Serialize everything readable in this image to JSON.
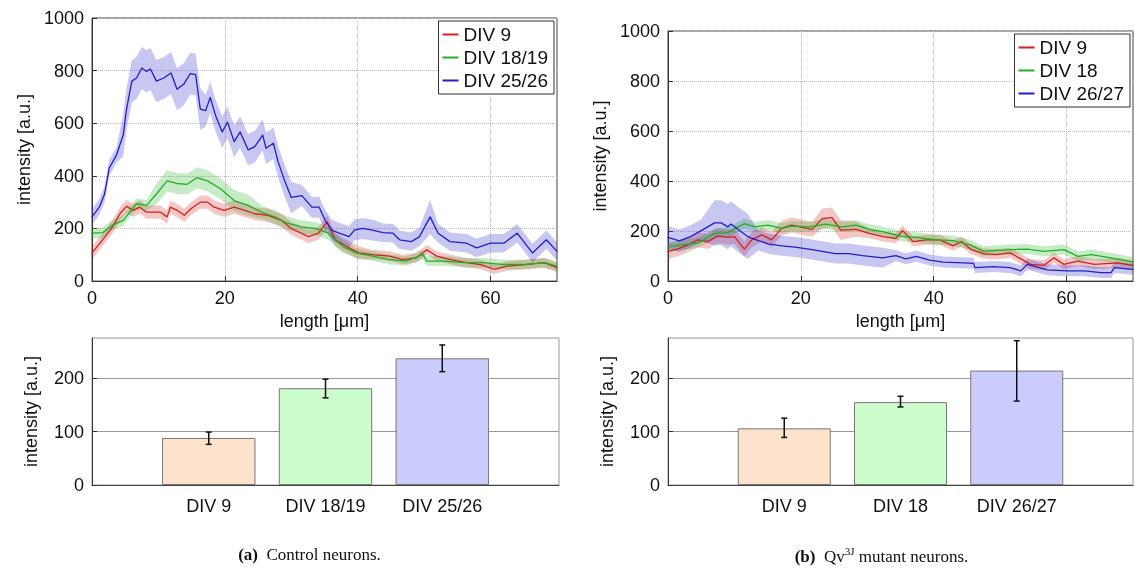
{
  "chart_data": [
    {
      "type": "line",
      "xlabel": "length [μm]",
      "ylabel": "intensity [a.u.]",
      "xlim": [
        0,
        70
      ],
      "xticks": [
        0,
        20,
        40,
        60
      ],
      "ylim": [
        0,
        1000
      ],
      "yticks": [
        0,
        200,
        400,
        600,
        800,
        1000
      ],
      "grid": true,
      "legend": "top right",
      "series": [
        {
          "name": "DIV 9",
          "color": "#d42020",
          "x": [
            0,
            1.6,
            3.1,
            4.2,
            5.2,
            6.2,
            7.2,
            8.2,
            10.3,
            11.3,
            11.8,
            12.8,
            13.9,
            14.9,
            16.3,
            17.4,
            18.4,
            19.9,
            21.4,
            23,
            24.5,
            26.5,
            28.5,
            30,
            32.6,
            34.1,
            35.4,
            36.6,
            38.7,
            40.2,
            42.2,
            44.8,
            46.8,
            48.8,
            50.4,
            51.9,
            54,
            56.4,
            58.5,
            60.5,
            62.5,
            65.1,
            68.1,
            70
          ],
          "values": [
            107,
            157,
            206,
            256,
            284,
            269,
            281,
            262,
            262,
            244,
            281,
            269,
            250,
            275,
            300,
            300,
            281,
            269,
            281,
            269,
            256,
            250,
            231,
            200,
            169,
            182,
            225,
            157,
            126,
            107,
            101,
            95,
            82,
            88,
            119,
            95,
            82,
            70,
            63,
            45,
            57,
            63,
            70,
            51
          ],
          "lower": [
            82,
            132,
            181,
            231,
            259,
            244,
            256,
            237,
            237,
            219,
            256,
            244,
            225,
            250,
            275,
            275,
            256,
            244,
            256,
            244,
            231,
            225,
            206,
            175,
            144,
            157,
            200,
            132,
            101,
            82,
            83,
            77,
            64,
            70,
            101,
            77,
            64,
            52,
            45,
            27,
            39,
            45,
            52,
            33
          ],
          "upper": [
            132,
            182,
            231,
            281,
            309,
            294,
            306,
            287,
            287,
            269,
            306,
            294,
            275,
            300,
            325,
            325,
            306,
            294,
            306,
            294,
            281,
            275,
            256,
            225,
            194,
            207,
            250,
            182,
            151,
            132,
            119,
            113,
            100,
            106,
            137,
            113,
            100,
            88,
            81,
            63,
            75,
            81,
            88,
            69
          ]
        },
        {
          "name": "DIV 18/19",
          "color": "#20b020",
          "x": [
            0,
            1.6,
            3.1,
            4.7,
            6.7,
            8.2,
            9.7,
            11.3,
            12.8,
            14.3,
            15.8,
            17.4,
            19.4,
            21.4,
            23.5,
            25.5,
            27.5,
            29.5,
            31.6,
            33.6,
            35.6,
            37.7,
            39.7,
            42.2,
            44.8,
            47.3,
            49.8,
            50.4,
            52.9,
            56,
            59,
            62,
            65.1,
            68.1,
            70
          ],
          "values": [
            182,
            184,
            213,
            231,
            294,
            288,
            331,
            381,
            371,
            368,
            393,
            381,
            350,
            306,
            288,
            262,
            244,
            219,
            206,
            200,
            182,
            132,
            107,
            95,
            82,
            76,
            101,
            76,
            76,
            70,
            70,
            63,
            63,
            70,
            57
          ],
          "lower": [
            162,
            164,
            193,
            211,
            274,
            268,
            291,
            341,
            331,
            328,
            353,
            341,
            310,
            266,
            248,
            237,
            219,
            194,
            181,
            175,
            157,
            107,
            89,
            77,
            64,
            58,
            83,
            58,
            58,
            52,
            52,
            45,
            45,
            52,
            39
          ],
          "upper": [
            202,
            204,
            233,
            251,
            314,
            308,
            371,
            421,
            411,
            408,
            433,
            421,
            390,
            346,
            328,
            287,
            269,
            244,
            231,
            225,
            207,
            157,
            125,
            113,
            100,
            94,
            119,
            94,
            94,
            88,
            88,
            81,
            81,
            88,
            75
          ]
        },
        {
          "name": "DIV 25/26",
          "color": "#2020c8",
          "x": [
            0,
            1.1,
            1.9,
            2.6,
            3.7,
            4.7,
            5.2,
            6,
            6.7,
            7.5,
            8.2,
            8.8,
            9.7,
            10.8,
            11.9,
            12.8,
            13.8,
            14.8,
            15.6,
            16.3,
            17.1,
            17.8,
            18.6,
            19.6,
            20.4,
            21.4,
            22.3,
            23.5,
            24.5,
            25.7,
            26.2,
            27.3,
            28,
            29,
            30,
            31.6,
            33.1,
            34.2,
            35.1,
            36.1,
            37.2,
            38.7,
            39.5,
            40.7,
            42.2,
            43.8,
            45.3,
            46.3,
            48.1,
            49.3,
            50.9,
            52.1,
            53.9,
            56.4,
            57.9,
            60,
            62,
            64,
            66.3,
            68.4,
            70
          ],
          "values": [
            244,
            281,
            331,
            430,
            480,
            555,
            654,
            760,
            772,
            810,
            797,
            806,
            760,
            772,
            791,
            729,
            748,
            789,
            785,
            654,
            648,
            698,
            629,
            567,
            604,
            530,
            567,
            499,
            511,
            555,
            505,
            524,
            455,
            381,
            318,
            325,
            281,
            281,
            231,
            194,
            182,
            169,
            194,
            200,
            194,
            184,
            182,
            157,
            150,
            169,
            244,
            182,
            150,
            144,
            126,
            144,
            144,
            182,
            107,
            157,
            113
          ],
          "lower": [
            214,
            251,
            301,
            400,
            450,
            475,
            574,
            680,
            692,
            730,
            717,
            726,
            680,
            692,
            711,
            649,
            668,
            709,
            705,
            574,
            588,
            638,
            569,
            507,
            544,
            470,
            507,
            439,
            451,
            495,
            445,
            464,
            395,
            321,
            258,
            285,
            241,
            241,
            191,
            154,
            142,
            129,
            154,
            160,
            154,
            149,
            147,
            122,
            115,
            134,
            179,
            147,
            115,
            109,
            91,
            109,
            109,
            147,
            72,
            122,
            78
          ],
          "upper": [
            274,
            311,
            361,
            460,
            510,
            635,
            734,
            840,
            852,
            890,
            877,
            886,
            840,
            852,
            871,
            809,
            828,
            869,
            865,
            734,
            708,
            758,
            689,
            627,
            664,
            590,
            627,
            559,
            571,
            615,
            565,
            584,
            515,
            441,
            378,
            365,
            321,
            321,
            271,
            234,
            222,
            209,
            234,
            240,
            234,
            219,
            217,
            192,
            185,
            204,
            309,
            217,
            185,
            179,
            161,
            179,
            179,
            217,
            142,
            192,
            148
          ]
        }
      ]
    },
    {
      "type": "bar",
      "ylabel": "intensity [a.u.]",
      "categories": [
        "DIV 9",
        "DIV 18/19",
        "DIV 25/26"
      ],
      "values": [
        88,
        181,
        237
      ],
      "colors": [
        "#fde3cb",
        "#cdfccd",
        "#ccccfc"
      ],
      "errors": [
        [
          76,
          99
        ],
        [
          163,
          198
        ],
        [
          212,
          262
        ]
      ],
      "ylim": [
        0,
        275
      ],
      "yticks": [
        0,
        100,
        200
      ],
      "grid": "y",
      "annotations": [
        "(a) Control neurons."
      ]
    },
    {
      "type": "line",
      "xlabel": "length [μm]",
      "ylabel": "intensity [a.u.]",
      "xlim": [
        0,
        70
      ],
      "xticks": [
        0,
        20,
        40,
        60
      ],
      "ylim": [
        0,
        1000
      ],
      "yticks": [
        0,
        200,
        400,
        600,
        800,
        1000
      ],
      "grid": true,
      "legend": "top right",
      "series": [
        {
          "name": "DIV 9",
          "color": "#d42020",
          "x": [
            0,
            1.4,
            3,
            4.5,
            6,
            7.5,
            9,
            10,
            11.5,
            12.6,
            14.1,
            15.6,
            17.1,
            18.6,
            20.2,
            21.7,
            23.2,
            24.7,
            26,
            28.3,
            30.3,
            32.3,
            34.3,
            35.3,
            36.9,
            38.9,
            40.9,
            42.9,
            44.2,
            45.5,
            47.5,
            49.5,
            51.5,
            54.6,
            56.6,
            58.1,
            59.6,
            61.7,
            64.2,
            67.7,
            70
          ],
          "values": [
            119,
            128,
            145,
            165,
            158,
            181,
            175,
            178,
            128,
            165,
            185,
            165,
            211,
            224,
            215,
            207,
            250,
            254,
            204,
            207,
            191,
            178,
            171,
            202,
            158,
            165,
            165,
            141,
            158,
            128,
            110,
            106,
            113,
            67,
            63,
            93,
            67,
            80,
            67,
            73,
            63
          ],
          "lower": [
            89,
            98,
            115,
            135,
            128,
            151,
            145,
            148,
            98,
            135,
            155,
            135,
            181,
            194,
            185,
            177,
            210,
            214,
            164,
            177,
            171,
            158,
            151,
            182,
            138,
            145,
            145,
            121,
            138,
            108,
            90,
            86,
            93,
            47,
            43,
            73,
            47,
            60,
            47,
            53,
            43
          ],
          "upper": [
            149,
            158,
            175,
            195,
            188,
            211,
            205,
            208,
            158,
            195,
            215,
            195,
            241,
            254,
            245,
            237,
            290,
            294,
            244,
            237,
            211,
            198,
            191,
            222,
            178,
            185,
            185,
            161,
            178,
            148,
            130,
            126,
            133,
            87,
            83,
            113,
            87,
            100,
            87,
            93,
            83
          ]
        },
        {
          "name": "DIV 18",
          "color": "#20b020",
          "x": [
            0,
            1.9,
            4.5,
            7,
            9,
            11.5,
            13.1,
            15.1,
            17.1,
            18.6,
            21.2,
            23.7,
            26.2,
            28.3,
            30.3,
            32.3,
            35.3,
            37.4,
            40.4,
            42.9,
            45.5,
            47.5,
            49.5,
            51.5,
            54.1,
            56.6,
            59.6,
            61.7,
            63.7,
            66.7,
            70
          ],
          "values": [
            136,
            145,
            152,
            191,
            194,
            230,
            217,
            224,
            211,
            220,
            217,
            228,
            217,
            224,
            207,
            198,
            178,
            175,
            165,
            162,
            145,
            119,
            123,
            126,
            128,
            119,
            126,
            99,
            106,
            93,
            76
          ],
          "lower": [
            116,
            125,
            132,
            171,
            174,
            210,
            197,
            204,
            191,
            200,
            197,
            208,
            197,
            204,
            187,
            178,
            158,
            155,
            145,
            142,
            125,
            99,
            103,
            106,
            108,
            99,
            106,
            79,
            86,
            73,
            56
          ],
          "upper": [
            156,
            165,
            172,
            211,
            214,
            250,
            237,
            244,
            231,
            240,
            237,
            248,
            237,
            244,
            227,
            218,
            198,
            195,
            185,
            182,
            165,
            139,
            143,
            146,
            148,
            139,
            146,
            119,
            126,
            113,
            96
          ]
        },
        {
          "name": "DIV 26/27",
          "color": "#2020c8",
          "x": [
            0,
            1.7,
            3.4,
            5,
            7,
            8,
            9,
            9.5,
            10.5,
            12,
            13.6,
            15.1,
            17.1,
            19.1,
            21.2,
            23.2,
            25.2,
            27.2,
            29.3,
            32.3,
            34.3,
            35.8,
            37.4,
            39.4,
            41.4,
            44.5,
            46,
            46.2,
            49,
            51.5,
            53.1,
            54.1,
            57.1,
            60.2,
            62.7,
            65.2,
            66.7,
            67.2,
            70
          ],
          "values": [
            175,
            161,
            178,
            202,
            233,
            233,
            217,
            228,
            207,
            178,
            162,
            149,
            141,
            136,
            128,
            119,
            110,
            110,
            102,
            93,
            102,
            89,
            99,
            84,
            76,
            73,
            71,
            54,
            58,
            54,
            41,
            67,
            45,
            41,
            41,
            34,
            34,
            54,
            47
          ],
          "lower": [
            130,
            116,
            133,
            157,
            143,
            143,
            127,
            138,
            117,
            88,
            122,
            109,
            101,
            96,
            88,
            79,
            70,
            70,
            62,
            53,
            80,
            67,
            77,
            62,
            54,
            51,
            49,
            32,
            36,
            32,
            19,
            45,
            23,
            19,
            19,
            12,
            12,
            32,
            25
          ],
          "upper": [
            220,
            206,
            223,
            247,
            323,
            323,
            307,
            318,
            297,
            268,
            202,
            189,
            181,
            176,
            168,
            159,
            150,
            150,
            142,
            133,
            124,
            111,
            121,
            106,
            98,
            95,
            93,
            76,
            80,
            76,
            63,
            89,
            67,
            63,
            63,
            56,
            56,
            76,
            69
          ]
        }
      ]
    },
    {
      "type": "bar",
      "ylabel": "intensity [a.u.]",
      "categories": [
        "DIV 9",
        "DIV 18",
        "DIV 26/27"
      ],
      "values": [
        106,
        155,
        214
      ],
      "colors": [
        "#fde3cb",
        "#cdfccd",
        "#ccccfc"
      ],
      "errors": [
        [
          89,
          125
        ],
        [
          146,
          166
        ],
        [
          157,
          270
        ]
      ],
      "ylim": [
        0,
        275
      ],
      "yticks": [
        0,
        100,
        200
      ],
      "grid": "y",
      "annotations": [
        "(b) Qv$^{3J}$ mutant neurons."
      ]
    }
  ]
}
